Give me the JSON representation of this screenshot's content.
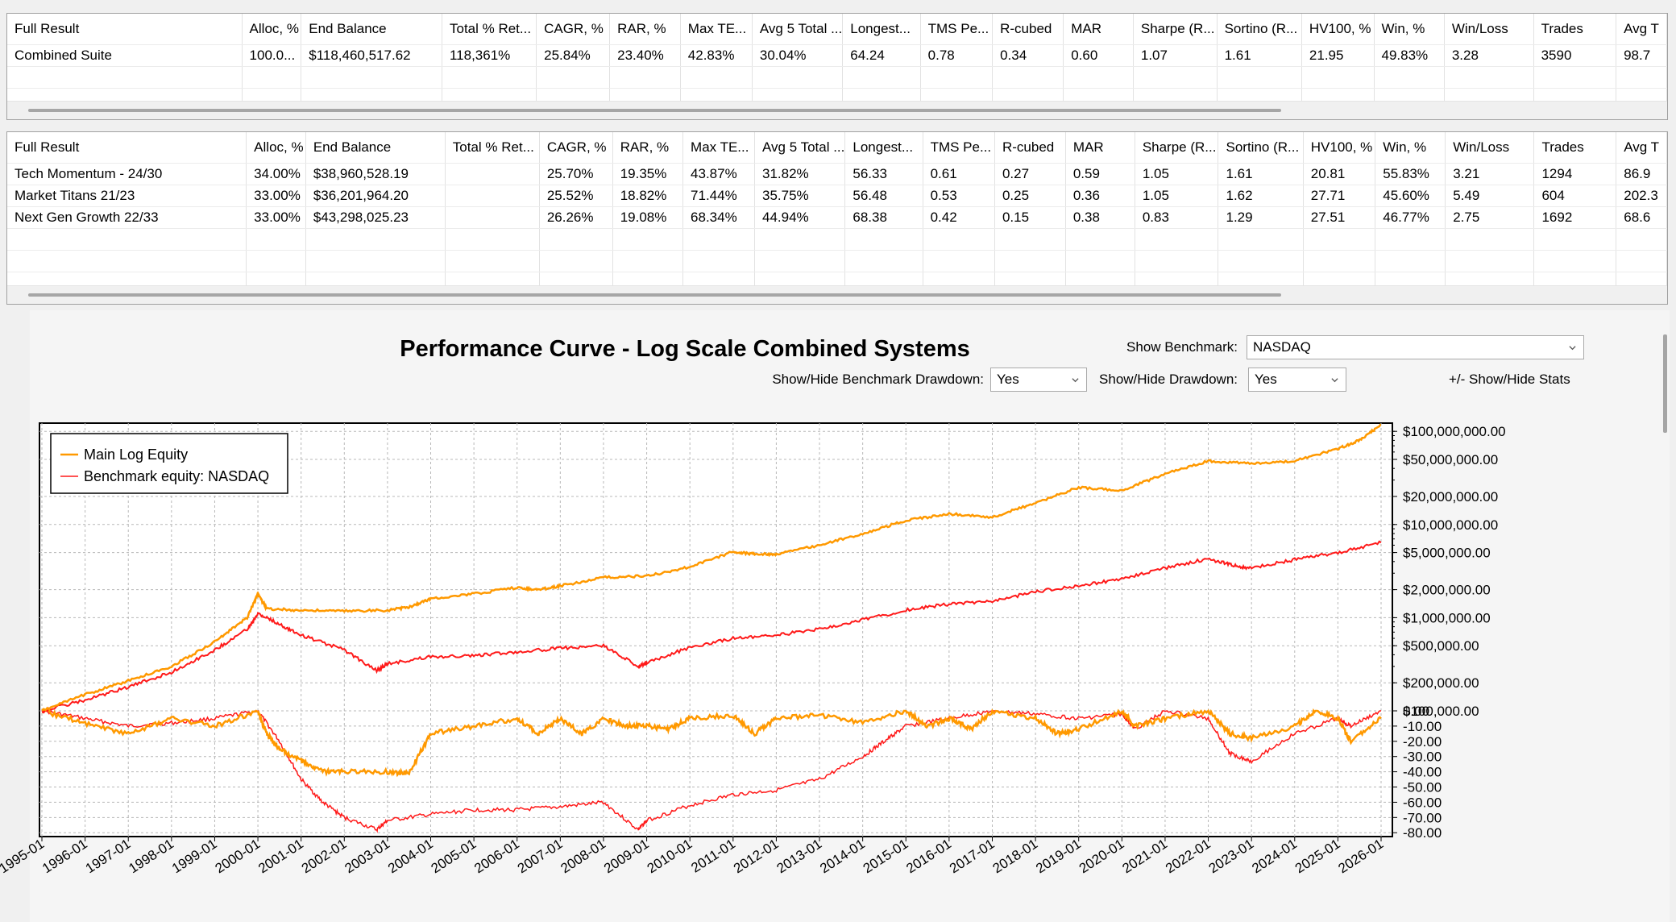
{
  "summary_grid": {
    "columns": [
      "Full Result",
      "Alloc, %",
      "End Balance",
      "Total % Ret...",
      "CAGR, %",
      "RAR, %",
      "Max TE...",
      "Avg 5 Total ...",
      "Longest...",
      "TMS Pe...",
      "R-cubed",
      "MAR",
      "Sharpe (R...",
      "Sortino (R...",
      "HV100, %",
      "Win, %",
      "Win/Loss",
      "Trades",
      "Avg T"
    ],
    "rows": [
      [
        "Combined Suite",
        "100.0...",
        "$118,460,517.62",
        "118,361%",
        "25.84%",
        "23.40%",
        "42.83%",
        "30.04%",
        "64.24",
        "0.78",
        "0.34",
        "0.60",
        "1.07",
        "1.61",
        "21.95",
        "49.83%",
        "3.28",
        "3590",
        "98.7"
      ]
    ]
  },
  "systems_grid": {
    "columns": [
      "Full Result",
      "Alloc, %",
      "End Balance",
      "Total % Ret...",
      "CAGR, %",
      "RAR, %",
      "Max TE...",
      "Avg 5 Total ...",
      "Longest...",
      "TMS Pe...",
      "R-cubed",
      "MAR",
      "Sharpe (R...",
      "Sortino (R...",
      "HV100, %",
      "Win, %",
      "Win/Loss",
      "Trades",
      "Avg T"
    ],
    "rows": [
      [
        "Tech Momentum -  24/30",
        "34.00%",
        "$38,960,528.19",
        "",
        "25.70%",
        "19.35%",
        "43.87%",
        "31.82%",
        "56.33",
        "0.61",
        "0.27",
        "0.59",
        "1.05",
        "1.61",
        "20.81",
        "55.83%",
        "3.21",
        "1294",
        "86.9"
      ],
      [
        "Market Titans 21/23",
        "33.00%",
        "$36,201,964.20",
        "",
        "25.52%",
        "18.82%",
        "71.44%",
        "35.75%",
        "56.48",
        "0.53",
        "0.25",
        "0.36",
        "1.05",
        "1.62",
        "27.71",
        "45.60%",
        "5.49",
        "604",
        "202.3"
      ],
      [
        "Next Gen Growth 22/33",
        "33.00%",
        "$43,298,025.23",
        "",
        "26.26%",
        "19.08%",
        "68.34%",
        "44.94%",
        "68.38",
        "0.42",
        "0.15",
        "0.38",
        "0.83",
        "1.29",
        "27.51",
        "46.77%",
        "2.75",
        "1692",
        "68.6"
      ]
    ]
  },
  "controls": {
    "title": "Performance Curve - Log Scale Combined Systems",
    "show_benchmark_label": "Show Benchmark:",
    "show_benchmark_value": "NASDAQ",
    "bench_drawdown_label": "Show/Hide Benchmark Drawdown:",
    "bench_drawdown_value": "Yes",
    "drawdown_label": "Show/Hide Drawdown:",
    "drawdown_value": "Yes",
    "stats_toggle": "+/- Show/Hide Stats"
  },
  "colors": {
    "main": "#ff9900",
    "benchmark": "#ff1a1a"
  },
  "chart_data": {
    "type": "line",
    "title": "",
    "legend": {
      "placement": "top-left",
      "entries": [
        "Main Log Equity",
        "Benchmark equity: NASDAQ"
      ]
    },
    "x_tick_labels": [
      "1995-01",
      "1996-01",
      "1997-01",
      "1998-01",
      "1999-01",
      "2000-01",
      "2001-01",
      "2002-01",
      "2003-01",
      "2004-01",
      "2005-01",
      "2006-01",
      "2007-01",
      "2008-01",
      "2009-01",
      "2010-01",
      "2011-01",
      "2012-01",
      "2013-01",
      "2014-01",
      "2015-01",
      "2016-01",
      "2017-01",
      "2018-01",
      "2019-01",
      "2020-01",
      "2021-01",
      "2022-01",
      "2023-01",
      "2024-01",
      "2025-01",
      "2026-01"
    ],
    "equity_axis": {
      "scale": "log",
      "range": [
        100000,
        125000000
      ],
      "tick_values": [
        100000,
        200000,
        500000,
        1000000,
        2000000,
        5000000,
        10000000,
        20000000,
        50000000,
        100000000
      ],
      "tick_labels": [
        "$100,000.00",
        "$200,000.00",
        "$500,000.00",
        "$1,000,000.00",
        "$2,000,000.00",
        "$5,000,000.00",
        "$10,000,000.00",
        "$20,000,000.00",
        "$50,000,000.00",
        "$100,000,000.00"
      ]
    },
    "drawdown_axis": {
      "range": [
        -82,
        0
      ],
      "tick_values": [
        0,
        -10,
        -20,
        -30,
        -40,
        -50,
        -60,
        -70,
        -80
      ],
      "tick_labels": [
        "0.00",
        "-10.00",
        "-20.00",
        "-30.00",
        "-40.00",
        "-50.00",
        "-60.00",
        "-70.00",
        "-80.00"
      ]
    },
    "equity_series": [
      {
        "name": "Main Log Equity",
        "x": [
          1995.0,
          1996.0,
          1997.0,
          1998.0,
          1999.0,
          1999.75,
          2000.0,
          2000.2,
          2001.0,
          2002.0,
          2003.0,
          2003.5,
          2004.0,
          2005.0,
          2006.0,
          2006.5,
          2007.0,
          2008.0,
          2009.0,
          2010.0,
          2011.0,
          2011.5,
          2012.0,
          2013.0,
          2014.0,
          2015.0,
          2016.0,
          2017.0,
          2018.0,
          2019.0,
          2020.0,
          2021.0,
          2022.0,
          2023.0,
          2024.0,
          2025.0,
          2025.5,
          2026.0
        ],
        "y": [
          100000,
          150000,
          210000,
          300000,
          550000,
          1000000,
          1800000,
          1250000,
          1200000,
          1180000,
          1200000,
          1300000,
          1600000,
          1800000,
          2100000,
          2000000,
          2200000,
          2700000,
          2800000,
          3500000,
          5100000,
          4800000,
          4800000,
          6000000,
          8000000,
          11000000,
          13000000,
          12000000,
          17000000,
          25000000,
          23000000,
          35000000,
          48000000,
          45000000,
          48000000,
          65000000,
          80000000,
          118000000
        ]
      },
      {
        "name": "Benchmark equity: NASDAQ",
        "x": [
          1995.0,
          1996.0,
          1997.0,
          1998.0,
          1999.0,
          1999.75,
          2000.0,
          2000.5,
          2001.0,
          2002.0,
          2002.75,
          2003.0,
          2004.0,
          2005.0,
          2006.0,
          2007.0,
          2008.0,
          2008.8,
          2009.0,
          2010.0,
          2011.0,
          2012.0,
          2013.0,
          2014.0,
          2015.0,
          2016.0,
          2017.0,
          2018.0,
          2019.0,
          2020.0,
          2021.0,
          2022.0,
          2022.5,
          2023.0,
          2024.0,
          2025.0,
          2026.0
        ],
        "y": [
          100000,
          130000,
          180000,
          260000,
          450000,
          750000,
          1100000,
          850000,
          650000,
          450000,
          270000,
          320000,
          380000,
          390000,
          430000,
          470000,
          500000,
          300000,
          330000,
          480000,
          600000,
          650000,
          750000,
          950000,
          1200000,
          1400000,
          1500000,
          1900000,
          2200000,
          2600000,
          3400000,
          4300000,
          3700000,
          3400000,
          4200000,
          5000000,
          6400000
        ]
      }
    ],
    "drawdown_series": [
      {
        "name": "Main drawdown",
        "x": [
          1995.0,
          1996.0,
          1997.0,
          1998.0,
          1999.0,
          2000.0,
          2000.2,
          2000.5,
          2001.0,
          2001.5,
          2002.0,
          2003.0,
          2003.5,
          2004.0,
          2005.0,
          2006.0,
          2006.5,
          2007.0,
          2007.5,
          2008.0,
          2008.5,
          2009.0,
          2009.5,
          2010.0,
          2011.0,
          2011.5,
          2012.0,
          2013.0,
          2014.0,
          2015.0,
          2015.5,
          2016.0,
          2016.5,
          2017.0,
          2018.0,
          2018.5,
          2019.0,
          2020.0,
          2020.3,
          2021.0,
          2022.0,
          2022.5,
          2023.0,
          2024.0,
          2024.5,
          2025.0,
          2025.3,
          2026.0
        ],
        "y": [
          0,
          -8,
          -15,
          -5,
          -10,
          0,
          -15,
          -25,
          -33,
          -40,
          -40,
          -40,
          -41,
          -15,
          -10,
          -5,
          -15,
          -5,
          -15,
          -5,
          -10,
          -10,
          -12,
          -5,
          -3,
          -15,
          -5,
          -3,
          -8,
          0,
          -10,
          -5,
          -12,
          0,
          -5,
          -15,
          -12,
          0,
          -10,
          -5,
          0,
          -15,
          -18,
          -10,
          0,
          -5,
          -20,
          -5
        ]
      },
      {
        "name": "Benchmark drawdown",
        "x": [
          1995.0,
          1996.0,
          1997.0,
          1998.0,
          1999.0,
          2000.0,
          2000.5,
          2001.0,
          2001.5,
          2002.0,
          2002.75,
          2003.0,
          2004.0,
          2005.0,
          2006.0,
          2007.0,
          2008.0,
          2008.8,
          2009.0,
          2010.0,
          2011.0,
          2012.0,
          2013.0,
          2014.0,
          2014.5,
          2015.0,
          2016.0,
          2017.0,
          2018.0,
          2019.0,
          2020.0,
          2020.3,
          2021.0,
          2022.0,
          2022.5,
          2023.0,
          2024.0,
          2025.0,
          2025.3,
          2026.0
        ],
        "y": [
          0,
          -5,
          -10,
          -8,
          -5,
          0,
          -20,
          -45,
          -60,
          -70,
          -78,
          -72,
          -68,
          -65,
          -65,
          -63,
          -60,
          -78,
          -72,
          -62,
          -55,
          -52,
          -45,
          -30,
          -20,
          -10,
          -5,
          0,
          -2,
          -5,
          -2,
          -12,
          0,
          -5,
          -28,
          -33,
          -15,
          -5,
          -10,
          0
        ]
      }
    ]
  }
}
